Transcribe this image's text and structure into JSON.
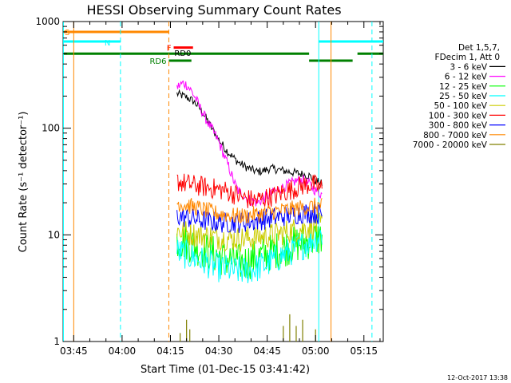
{
  "chart_data": {
    "type": "line",
    "title": "HESSI Observing Summary Count Rates",
    "xlabel": "Start Time (01-Dec-15 03:41:42)",
    "ylabel": "Count Rate (s⁻¹ detector⁻¹)",
    "x_unit": "minutes",
    "xlim": [
      221.7,
      321.0
    ],
    "ylim": [
      1,
      1000
    ],
    "y_scale": "log",
    "x_ticks": [
      {
        "value": 225,
        "label": "03:45"
      },
      {
        "value": 240,
        "label": "04:00"
      },
      {
        "value": 255,
        "label": "04:15"
      },
      {
        "value": 270,
        "label": "04:30"
      },
      {
        "value": 285,
        "label": "04:45"
      },
      {
        "value": 300,
        "label": "05:00"
      },
      {
        "value": 315,
        "label": "05:15"
      }
    ],
    "y_ticks": [
      {
        "value": 1,
        "label": "1"
      },
      {
        "value": 10,
        "label": "10"
      },
      {
        "value": 100,
        "label": "100"
      },
      {
        "value": 1000,
        "label": "1000"
      }
    ],
    "grid": false,
    "legend_position": "right",
    "legend_header": [
      "Det 1,5,7,",
      "FDecim 1, Att 0"
    ],
    "timestamp": "12-Oct-2017 13:38",
    "series": [
      {
        "name": "3 - 6 keV",
        "color": "#000000",
        "x": [
          257,
          258,
          259,
          260,
          261,
          262,
          263,
          264,
          265,
          266,
          267,
          268,
          269,
          270,
          272,
          274,
          276,
          278,
          280,
          282,
          284,
          286,
          288,
          290,
          292,
          294,
          296,
          298,
          300,
          302
        ],
        "values": [
          210,
          205,
          200,
          195,
          188,
          180,
          168,
          155,
          140,
          125,
          110,
          98,
          88,
          78,
          64,
          55,
          48,
          44,
          41,
          39,
          40,
          42,
          41,
          40,
          39,
          38,
          37,
          36,
          32,
          30
        ]
      },
      {
        "name": "6 - 12 keV",
        "color": "#ff00ff",
        "x": [
          257,
          258,
          259,
          260,
          261,
          262,
          263,
          264,
          265,
          266,
          267,
          268,
          269,
          270,
          271,
          272,
          273,
          274,
          275,
          276,
          278,
          280,
          282,
          284,
          286,
          288,
          290,
          292,
          294,
          296,
          298,
          300,
          302
        ],
        "values": [
          240,
          255,
          265,
          255,
          235,
          210,
          185,
          160,
          140,
          122,
          108,
          96,
          85,
          74,
          62,
          52,
          44,
          36,
          30,
          26,
          23,
          21,
          20,
          22,
          24,
          26,
          28,
          30,
          32,
          33,
          30,
          26,
          24
        ]
      },
      {
        "name": "12 - 25 keV",
        "color": "#00ff00",
        "x": [
          257,
          260,
          263,
          266,
          269,
          272,
          275,
          278,
          281,
          284,
          287,
          290,
          293,
          296,
          299,
          302
        ],
        "values": [
          9,
          8.5,
          7.8,
          7,
          6.5,
          6,
          5.6,
          5.5,
          6,
          6.5,
          7,
          7.5,
          8,
          8.5,
          9,
          9.5
        ]
      },
      {
        "name": "25 - 50 keV",
        "color": "#00ffff",
        "x": [
          257,
          260,
          263,
          266,
          269,
          272,
          275,
          278,
          281,
          284,
          287,
          290,
          293,
          296,
          299,
          302
        ],
        "values": [
          7,
          6.5,
          6,
          5.5,
          5,
          4.8,
          4.6,
          4.6,
          4.8,
          5.2,
          5.8,
          6.5,
          7.2,
          8,
          9,
          10
        ]
      },
      {
        "name": "50 - 100 keV",
        "color": "#cccc00",
        "x": [
          257,
          260,
          263,
          266,
          269,
          272,
          275,
          278,
          281,
          284,
          287,
          290,
          293,
          296,
          299,
          302
        ],
        "values": [
          11,
          10.5,
          10,
          9.8,
          9.5,
          9.3,
          9.2,
          9.2,
          9.4,
          9.7,
          10,
          10.5,
          11,
          11.5,
          12,
          12.5
        ]
      },
      {
        "name": "100 - 300 keV",
        "color": "#ff0000",
        "x": [
          257,
          260,
          263,
          266,
          269,
          272,
          275,
          278,
          281,
          284,
          287,
          290,
          293,
          296,
          299,
          302
        ],
        "values": [
          32,
          30,
          29,
          28,
          27,
          26,
          24,
          22,
          21,
          22,
          23,
          25,
          27,
          29,
          30,
          27
        ]
      },
      {
        "name": "300 - 800 keV",
        "color": "#0000ff",
        "x": [
          257,
          260,
          263,
          266,
          269,
          272,
          275,
          278,
          281,
          284,
          287,
          290,
          293,
          296,
          299,
          302
        ],
        "values": [
          15,
          14.5,
          14,
          13.5,
          13.2,
          13,
          13,
          13.2,
          13.5,
          14,
          14.5,
          15,
          15.5,
          16,
          16,
          15.5
        ]
      },
      {
        "name": "800 - 7000 keV",
        "color": "#ff8800",
        "x": [
          257,
          260,
          263,
          266,
          269,
          272,
          275,
          278,
          281,
          284,
          287,
          290,
          293,
          296,
          299,
          302
        ],
        "values": [
          20,
          19,
          18,
          17,
          16,
          15.5,
          15,
          15,
          15.5,
          16,
          16.5,
          17,
          17.5,
          18,
          18.5,
          19
        ]
      },
      {
        "name": "7000 - 20000 keV",
        "color": "#808000",
        "x": [
          258,
          260,
          261,
          290,
          292,
          294,
          296,
          300
        ],
        "values": [
          1.2,
          1.6,
          1.3,
          1.4,
          1.8,
          1.4,
          1.6,
          1.3
        ]
      }
    ],
    "flag_lines": [
      {
        "label": "S",
        "color": "#ff8800",
        "x_start": 221.7,
        "x_end": 254.5,
        "y_value": 800
      },
      {
        "label": "N",
        "color": "#00ffff",
        "x_start": 221.7,
        "x_end": 239.5,
        "y_value": 650
      },
      {
        "label": "N",
        "color": "#00ffff",
        "x_start": 301.0,
        "x_end": 321.0,
        "y_value": 650
      },
      {
        "label": "F",
        "color": "#ff0000",
        "x_start": 256.0,
        "x_end": 262.0,
        "y_value": 570
      },
      {
        "label": "RD0",
        "color": "#008000",
        "x_start": 221.7,
        "x_end": 298.0,
        "y_value": 500
      },
      {
        "label": "RD0",
        "color": "#008000",
        "x_start": 313.0,
        "x_end": 321.0,
        "y_value": 500
      },
      {
        "label": "RD6",
        "color": "#008000",
        "x_start": 254.5,
        "x_end": 261.5,
        "y_value": 430
      },
      {
        "label": "RD6",
        "color": "#008000",
        "x_start": 298.0,
        "x_end": 311.5,
        "y_value": 430
      }
    ],
    "vertical_markers": [
      {
        "x": 221.8,
        "color": "#00ffff",
        "style": "solid"
      },
      {
        "x": 225.0,
        "color": "#ff8800",
        "style": "solid"
      },
      {
        "x": 239.5,
        "color": "#00ffff",
        "style": "dashed"
      },
      {
        "x": 254.5,
        "color": "#ff8800",
        "style": "dashed"
      },
      {
        "x": 301.0,
        "color": "#00ffff",
        "style": "solid"
      },
      {
        "x": 304.8,
        "color": "#ff8800",
        "style": "solid"
      },
      {
        "x": 317.5,
        "color": "#00ffff",
        "style": "dashed"
      }
    ]
  }
}
